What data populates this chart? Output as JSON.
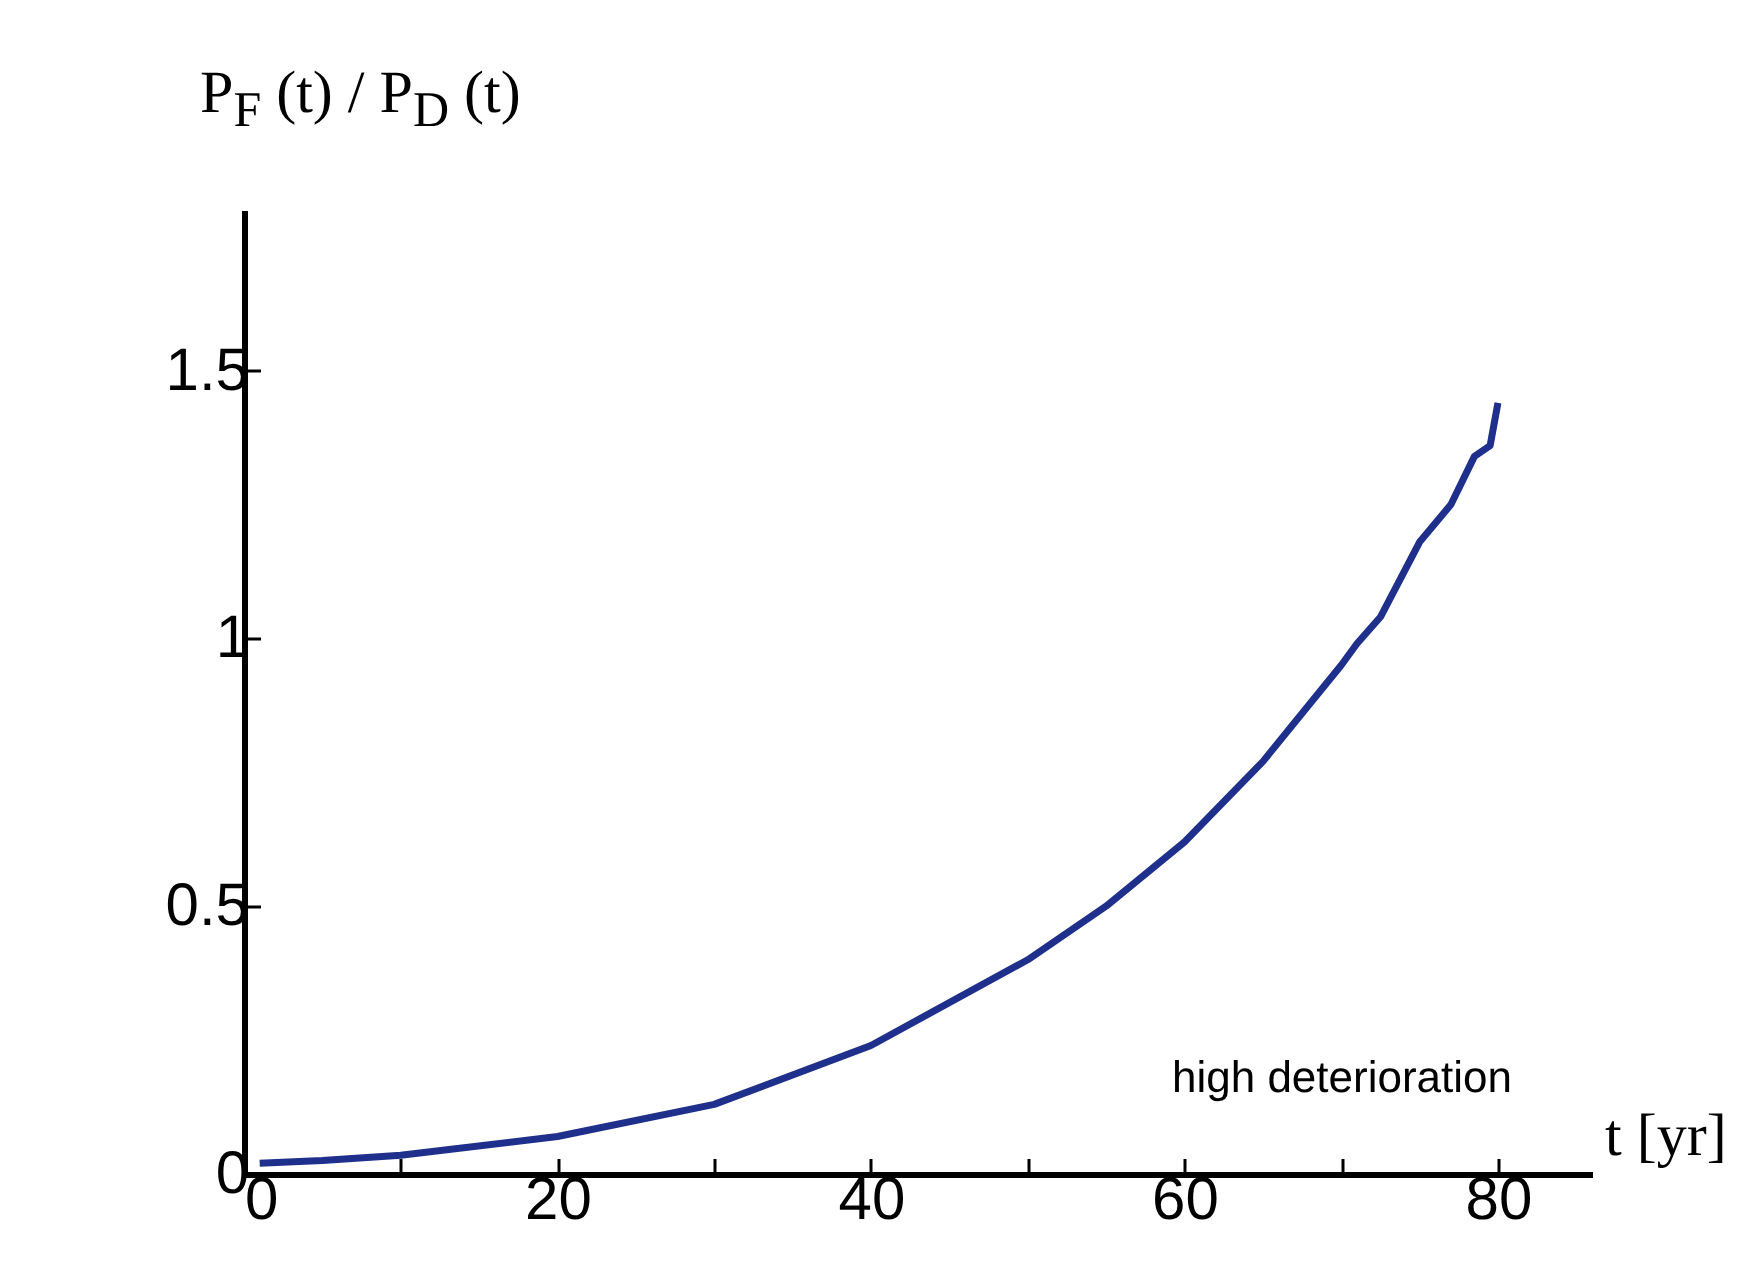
{
  "chart_data": {
    "type": "line",
    "ylabel": "P$_{F}$ (t) / P$_{D}$ (t)",
    "xlabel": "t [yr]",
    "annotations": [
      "high deterioration"
    ],
    "x": [
      1,
      5,
      10,
      20,
      30,
      40,
      50,
      55,
      60,
      65,
      70,
      71,
      72.5,
      75,
      77,
      78.5,
      79.5,
      80
    ],
    "series": [
      {
        "color": "#1f2f8c",
        "values": [
          0.02,
          0.025,
          0.035,
          0.07,
          0.13,
          0.24,
          0.4,
          0.5,
          0.62,
          0.77,
          0.95,
          0.99,
          1.04,
          1.18,
          1.25,
          1.34,
          1.36,
          1.44
        ]
      }
    ],
    "xlim": [
      0,
      86
    ],
    "ylim": [
      0,
      1.8
    ],
    "xticks": [
      0,
      {
        "value": 10,
        "label": null
      },
      20,
      {
        "value": 30,
        "label": null
      },
      40,
      {
        "value": 50,
        "label": null
      },
      60,
      {
        "value": 70,
        "label": null
      },
      80
    ],
    "yticks": [
      0,
      0.5,
      1,
      1.5
    ],
    "grid": false,
    "line_style": "solid",
    "marker": "none"
  }
}
